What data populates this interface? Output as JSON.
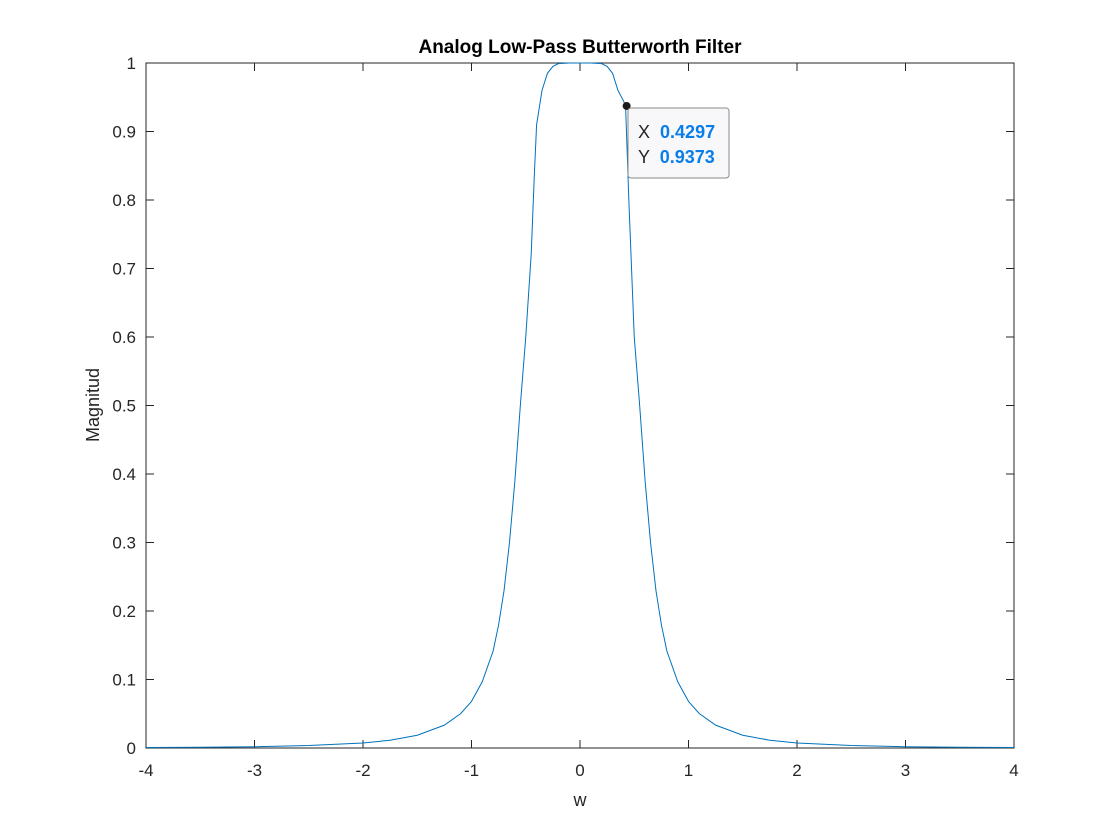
{
  "chart_data": {
    "type": "line",
    "title": "Analog Low-Pass Butterworth Filter",
    "xlabel": "w",
    "ylabel": "Magnitud",
    "xlim": [
      -4,
      4
    ],
    "ylim": [
      0,
      1
    ],
    "x_ticks": [
      "-4",
      "-3",
      "-2",
      "-1",
      "0",
      "1",
      "2",
      "3",
      "4"
    ],
    "y_ticks": [
      "0",
      "0.1",
      "0.2",
      "0.3",
      "0.4",
      "0.5",
      "0.6",
      "0.7",
      "0.8",
      "0.9",
      "1"
    ],
    "grid": false,
    "line_color": "#0072bd",
    "series": [
      {
        "x": [
          -4,
          -3.5,
          -3,
          -2.5,
          -2,
          -1.75,
          -1.5,
          -1.25,
          -1.1,
          -1,
          -0.9,
          -0.8,
          -0.75,
          -0.7,
          -0.65,
          -0.6,
          -0.55,
          -0.5,
          -0.45,
          -0.42,
          -0.4,
          -0.35,
          -0.3,
          -0.25,
          -0.2,
          -0.1,
          0,
          0.1,
          0.2,
          0.25,
          0.3,
          0.35,
          0.4,
          0.42,
          0.45,
          0.5,
          0.55,
          0.6,
          0.65,
          0.7,
          0.75,
          0.8,
          0.9,
          1,
          1.1,
          1.25,
          1.5,
          1.75,
          2,
          2.5,
          3,
          3.5,
          4
        ],
        "y": [
          0.0007,
          0.0011,
          0.0019,
          0.0036,
          0.0073,
          0.0113,
          0.0186,
          0.0334,
          0.0502,
          0.068,
          0.097,
          0.142,
          0.18,
          0.23,
          0.3,
          0.39,
          0.5,
          0.6,
          0.72,
          0.84,
          0.91,
          0.96,
          0.985,
          0.995,
          0.999,
          1.0,
          1.0,
          1.0,
          0.999,
          0.995,
          0.985,
          0.96,
          0.945,
          0.9373,
          0.8,
          0.6,
          0.5,
          0.39,
          0.3,
          0.23,
          0.18,
          0.142,
          0.097,
          0.068,
          0.0502,
          0.0334,
          0.0186,
          0.0113,
          0.0073,
          0.0036,
          0.0019,
          0.0011,
          0.0007
        ]
      }
    ],
    "datatip": {
      "x_label": "X",
      "x_value": "0.4297",
      "y_label": "Y",
      "y_value": "0.9373",
      "point": [
        0.4297,
        0.9373
      ]
    }
  }
}
